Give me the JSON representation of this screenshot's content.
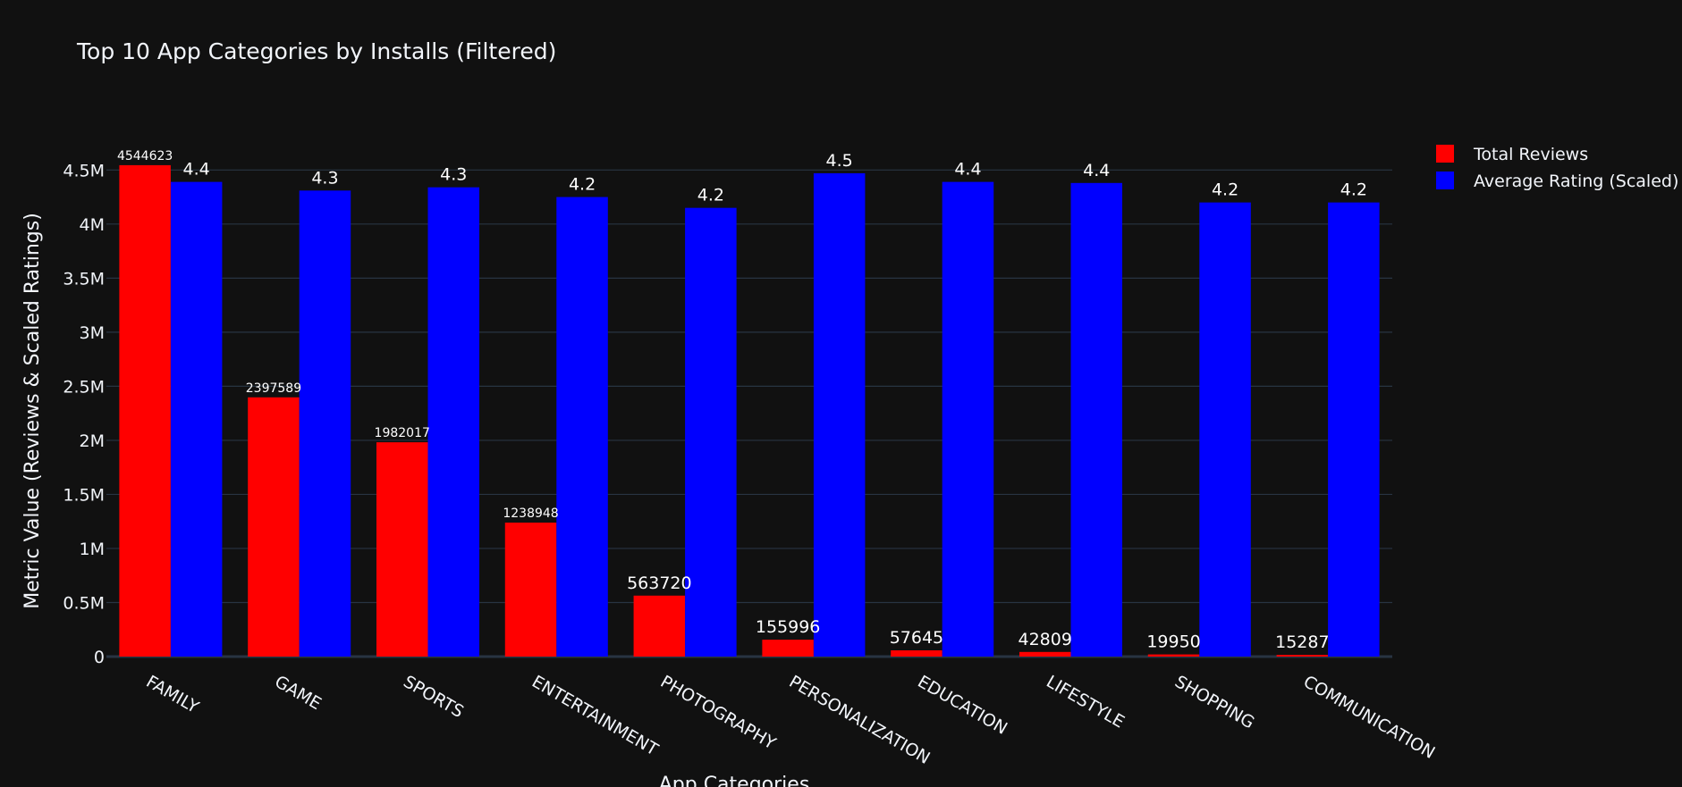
{
  "chart_data": {
    "type": "bar",
    "title": "Top 10 App Categories by Installs (Filtered)",
    "xlabel": "App Categories",
    "ylabel": "Metric Value (Reviews & Scaled Ratings)",
    "categories": [
      "FAMILY",
      "GAME",
      "SPORTS",
      "ENTERTAINMENT",
      "PHOTOGRAPHY",
      "PERSONALIZATION",
      "EDUCATION",
      "LIFESTYLE",
      "SHOPPING",
      "COMMUNICATION"
    ],
    "series": [
      {
        "name": "Total Reviews",
        "color": "#ff0000",
        "values": [
          4544623,
          2397589,
          1982017,
          1238948,
          563720,
          155996,
          57645,
          42809,
          19950,
          15287
        ],
        "labels": [
          "4544623",
          "2397589",
          "1982017",
          "1238948",
          "563720",
          "155996",
          "57645",
          "42809",
          "19950",
          "15287"
        ]
      },
      {
        "name": "Average Rating (Scaled)",
        "color": "#0000ff",
        "values": [
          4390000,
          4310000,
          4340000,
          4250000,
          4150000,
          4470000,
          4390000,
          4380000,
          4200000,
          4200000
        ],
        "labels": [
          "4.4",
          "4.3",
          "4.3",
          "4.2",
          "4.2",
          "4.5",
          "4.4",
          "4.4",
          "4.2",
          "4.2"
        ]
      }
    ],
    "ylim": [
      0,
      4800000
    ],
    "yticks": [
      {
        "value": 0,
        "label": "0"
      },
      {
        "value": 500000,
        "label": "0.5M"
      },
      {
        "value": 1000000,
        "label": "1M"
      },
      {
        "value": 1500000,
        "label": "1.5M"
      },
      {
        "value": 2000000,
        "label": "2M"
      },
      {
        "value": 2500000,
        "label": "2.5M"
      },
      {
        "value": 3000000,
        "label": "3M"
      },
      {
        "value": 3500000,
        "label": "3.5M"
      },
      {
        "value": 4000000,
        "label": "4M"
      },
      {
        "value": 4500000,
        "label": "4.5M"
      }
    ],
    "grid": true,
    "legend_position": "top-right",
    "background": "#111111",
    "grid_color": "#283442"
  }
}
